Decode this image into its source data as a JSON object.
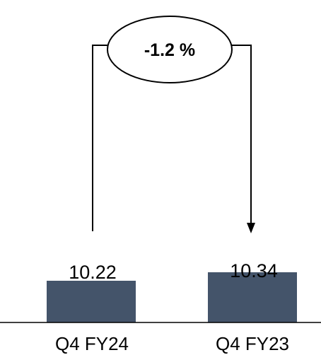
{
  "chart_data": {
    "type": "bar",
    "categories": [
      "Q4 FY24",
      "Q4 FY23"
    ],
    "values": [
      10.22,
      10.34
    ],
    "value_labels": [
      "10.22",
      "10.34"
    ],
    "change_annotation": "-1.2 %",
    "title": "",
    "xlabel": "",
    "ylabel": "",
    "grid": false,
    "bar_color": "#44546a",
    "arrow_color": "#000000"
  }
}
